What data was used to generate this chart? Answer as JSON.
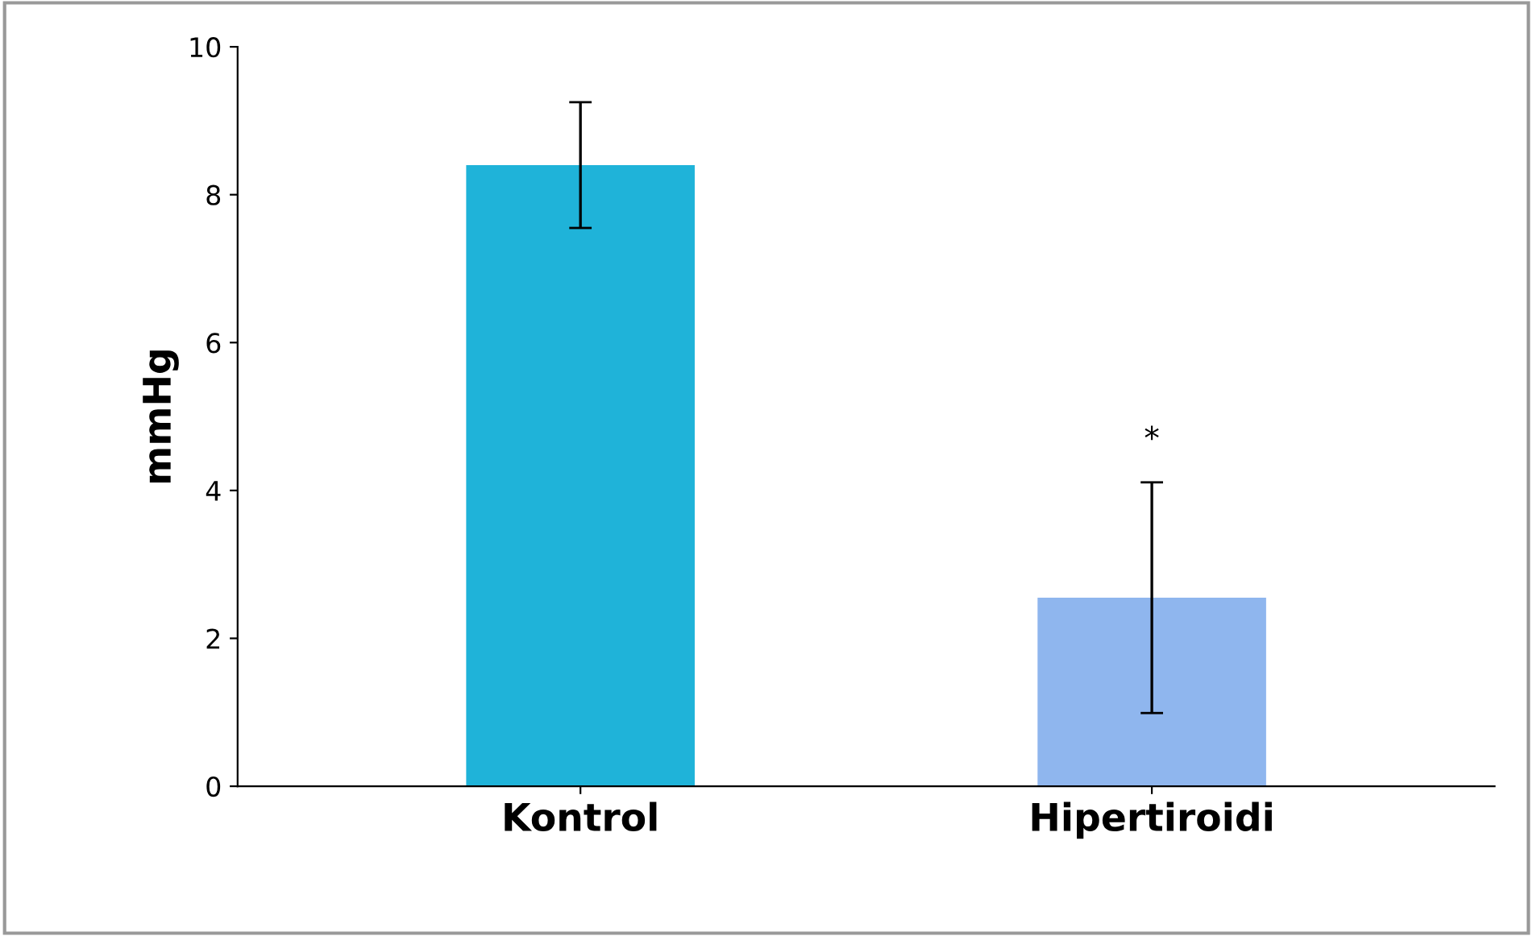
{
  "chart_data": {
    "type": "bar",
    "ylabel": "mmHg",
    "categories": [
      "Kontrol",
      "Hipertiroidi"
    ],
    "values": [
      8.4,
      2.55
    ],
    "errors": [
      0.85,
      1.56
    ],
    "colors": [
      "#1fb3d9",
      "#8fb6ee"
    ],
    "ylim": [
      0,
      10
    ],
    "yticks": [
      0,
      2,
      4,
      6,
      8,
      10
    ],
    "grid": false,
    "annotations": [
      "*"
    ]
  }
}
